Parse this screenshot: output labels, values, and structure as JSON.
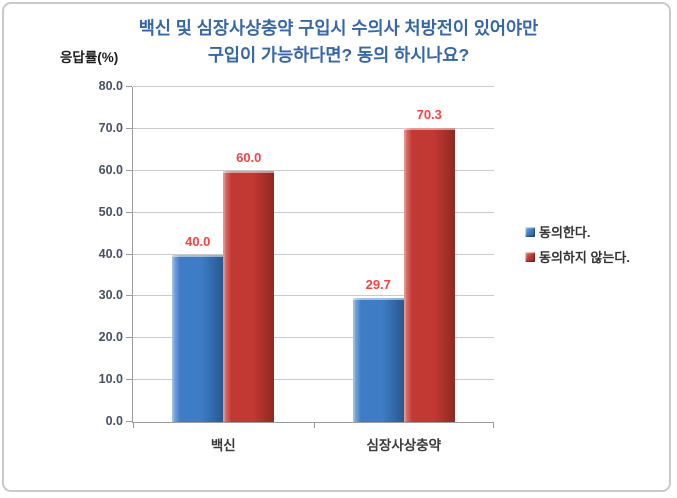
{
  "chart_data": {
    "type": "bar",
    "title_lines": [
      "백신 및 심장사상충약 구입시 수의사 처방전이 있어야만",
      "구입이 가능하다면? 동의 하시나요?"
    ],
    "ylabel": "응답률(%)",
    "categories": [
      "백신",
      "심장사상충약"
    ],
    "series": [
      {
        "name": "동의한다.",
        "values": [
          40.0,
          29.7
        ]
      },
      {
        "name": "동의하지 않는다.",
        "values": [
          60.0,
          70.3
        ]
      }
    ],
    "data_labels": [
      [
        "40.0",
        "29.7"
      ],
      [
        "60.0",
        "70.3"
      ]
    ],
    "ylim": [
      0,
      80
    ],
    "ytick_step": 10,
    "ytick_labels": [
      "0.0",
      "10.0",
      "20.0",
      "30.0",
      "40.0",
      "50.0",
      "60.0",
      "70.0",
      "80.0"
    ],
    "grid": true,
    "legend_position": "right"
  },
  "colors": {
    "title": "#3766a8",
    "series_blue": {
      "base": "#3e7cc6",
      "light": "#8db3de",
      "dark": "#27588f"
    },
    "series_red": {
      "base": "#c23933",
      "light": "#e2837c",
      "dark": "#8e2a22"
    },
    "data_label": "#fb4040",
    "gridline": "#cacaca",
    "axis": "#9b9b9b",
    "tick_label": "#475062"
  }
}
